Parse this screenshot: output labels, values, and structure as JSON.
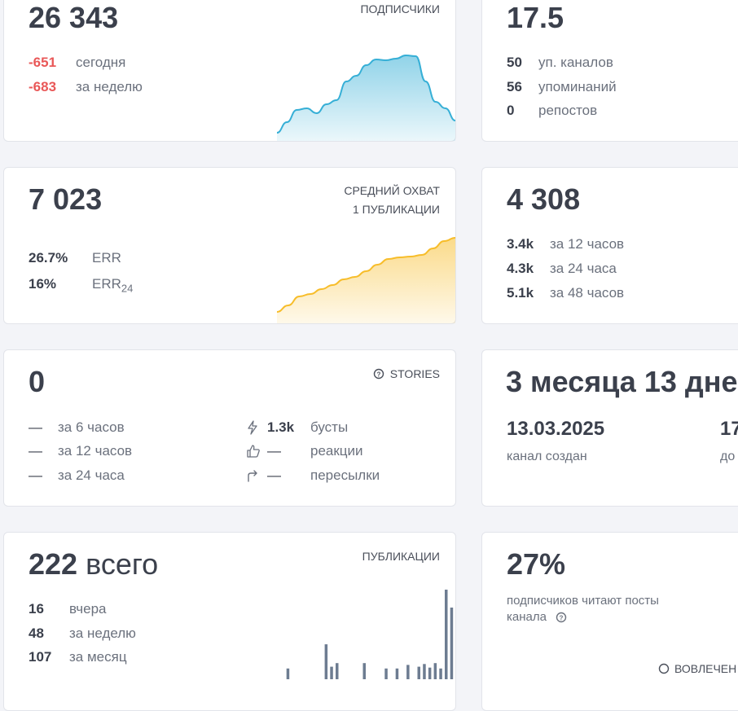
{
  "cards": [
    {
      "value": "26 343",
      "header": [
        "ПОДПИСЧИКИ"
      ],
      "rows": [
        {
          "value": "-651",
          "label": "сегодня"
        },
        {
          "value": "-683",
          "label": "за неделю"
        }
      ],
      "chart": {
        "type": "area",
        "color": "#36afd6",
        "ylim": [
          0,
          110
        ],
        "values": [
          10,
          23,
          38,
          40,
          34,
          45,
          50,
          73,
          80,
          93,
          100,
          99,
          101,
          105,
          104,
          73,
          48,
          40,
          25
        ]
      }
    },
    {
      "value": "17.5",
      "rows": [
        {
          "value": "50",
          "label": "уп. каналов"
        },
        {
          "value": "56",
          "label": "упоминаний"
        },
        {
          "value": "0",
          "label": "репостов"
        }
      ]
    },
    {
      "value": "7 023",
      "header": [
        "СРЕДНИЙ ОХВАТ",
        "1 ПУБЛИКАЦИИ"
      ],
      "rows": [
        {
          "value": "26.7%",
          "label": "ERR"
        },
        {
          "value": "16%",
          "label": "ERR",
          "sub": "24"
        }
      ],
      "chart": {
        "type": "area",
        "color": "#f7bd2a",
        "ylim": [
          0,
          110
        ],
        "values": [
          14,
          22,
          33,
          36,
          42,
          47,
          54,
          57,
          64,
          72,
          79,
          81,
          82,
          84,
          92,
          101,
          105
        ]
      }
    },
    {
      "value": "4 308",
      "rows": [
        {
          "value": "3.4k",
          "label": "за 12 часов"
        },
        {
          "value": "4.3k",
          "label": "за 24 часа"
        },
        {
          "value": "5.1k",
          "label": "за 48 часов"
        }
      ]
    },
    {
      "value": "0",
      "header": [
        "STORIES"
      ],
      "rows": [
        {
          "value": "—",
          "label": "за 6 часов"
        },
        {
          "value": "—",
          "label": "за 12 часов"
        },
        {
          "value": "—",
          "label": "за 24 часа"
        }
      ],
      "rows2": [
        {
          "value": "1.3k",
          "label": "бусты"
        },
        {
          "value": "—",
          "label": "реакции"
        },
        {
          "value": "—",
          "label": "пересылки"
        }
      ]
    },
    {
      "value": "3 месяца 13 дне",
      "dates": [
        {
          "value": "13.03.2025",
          "label": "канал создан"
        },
        {
          "value": "17",
          "label": "до"
        }
      ]
    },
    {
      "value": "222",
      "unit": "всего",
      "header": [
        "ПУБЛИКАЦИИ"
      ],
      "rows": [
        {
          "value": "16",
          "label": "вчера"
        },
        {
          "value": "48",
          "label": "за неделю"
        },
        {
          "value": "107",
          "label": "за месяц"
        }
      ],
      "chart": {
        "type": "bar",
        "color": "#6d7c91",
        "ylim": [
          0,
          100
        ],
        "values": [
          0,
          12,
          0,
          0,
          0,
          0,
          0,
          0,
          39,
          14,
          18,
          0,
          0,
          0,
          0,
          18,
          0,
          0,
          0,
          12,
          0,
          12,
          0,
          16,
          0,
          14,
          17,
          13,
          18,
          12,
          100,
          80
        ]
      }
    },
    {
      "value": "27%",
      "text": [
        "подписчиков читают посты",
        "канала"
      ],
      "footer": "ВОВЛЕЧЕН"
    }
  ]
}
